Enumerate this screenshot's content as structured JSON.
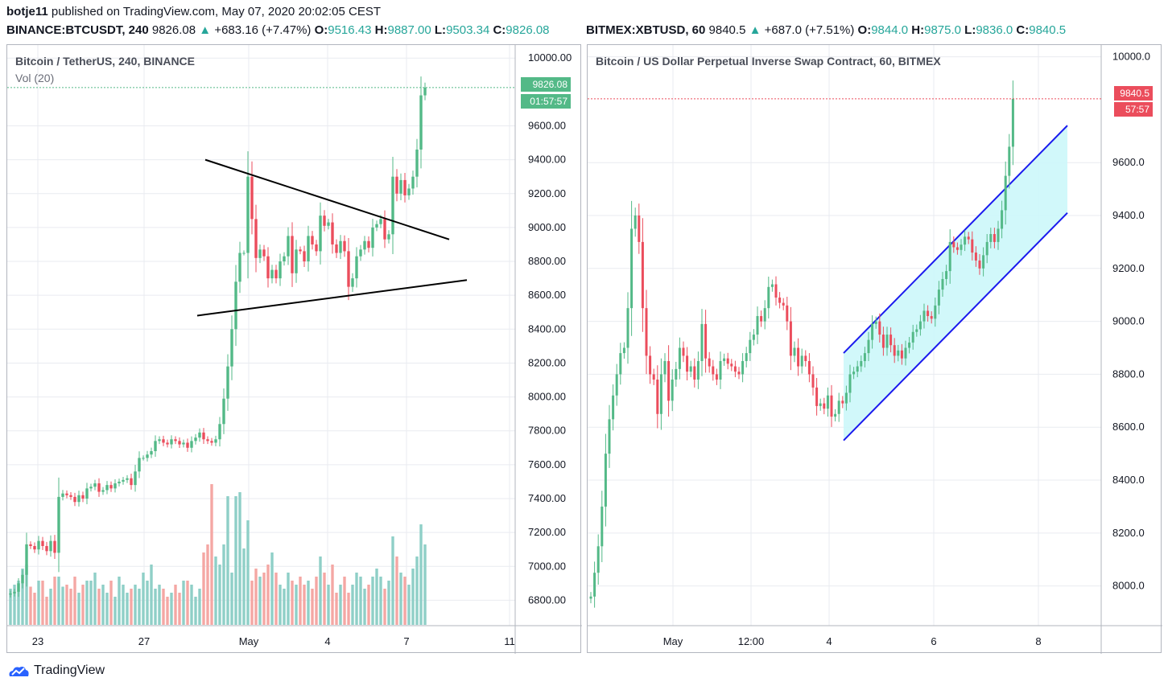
{
  "header": {
    "author": "botje11",
    "published_text": "published on TradingView.com, May 07, 2020 20:02:05 CEST"
  },
  "colors": {
    "up": "#53b987",
    "down": "#eb4d5c",
    "vol_up": "#8fcfc7",
    "vol_down": "#f4a7a4",
    "grid": "#e9ebf0",
    "channel_line": "#1a1aee",
    "channel_fill": "#ccf7f9",
    "triangle_line": "#000000"
  },
  "left": {
    "symbol": "BINANCE:BTCUSDT, 240",
    "last": "9826.08",
    "change": "+683.16 (+7.47%)",
    "o_label": "O:",
    "o": "9516.43",
    "h_label": "H:",
    "h": "9887.00",
    "l_label": "L:",
    "l": "9503.34",
    "c_label": "C:",
    "c": "9826.08",
    "title": "Bitcoin / TetherUS, 240, BINANCE",
    "vol_label": "Vol (20)",
    "price_tag": "9826.08",
    "countdown": "01:57:57",
    "x_labels": [
      "23",
      "27",
      "May",
      "4",
      "7",
      "11"
    ],
    "y_labels": [
      "10000.00",
      "9600.00",
      "9400.00",
      "9200.00",
      "9000.00",
      "8800.00",
      "8600.00",
      "8400.00",
      "8200.00",
      "8000.00",
      "7800.00",
      "7600.00",
      "7400.00",
      "7200.00",
      "7000.00",
      "6800.00"
    ]
  },
  "right": {
    "symbol": "BITMEX:XBTUSD, 60",
    "last": "9840.5",
    "change": "+687.0 (+7.51%)",
    "o_label": "O:",
    "o": "9844.0",
    "h_label": "H:",
    "h": "9875.0",
    "l_label": "L:",
    "l": "9836.0",
    "c_label": "C:",
    "c": "9840.5",
    "title": "Bitcoin / US Dollar Perpetual Inverse Swap Contract, 60, BITMEX",
    "price_tag": "9840.5",
    "countdown": "57:57",
    "x_labels": [
      "May",
      "12:00",
      "4",
      "6",
      "8"
    ],
    "y_labels": [
      "10000.0",
      "9600.0",
      "9400.0",
      "9200.0",
      "9000.0",
      "8800.0",
      "8600.0",
      "8400.0",
      "8200.0",
      "8000.0"
    ]
  },
  "footer": {
    "brand": "TradingView"
  },
  "chart_data": [
    {
      "type": "candlestick",
      "title": "Bitcoin / TetherUS, 240, BINANCE",
      "y_range": [
        6650,
        10020
      ],
      "annotations": "symmetrical triangle (two converging trendlines)",
      "series": [
        {
          "name": "price",
          "close": [
            6840,
            6850,
            6900,
            6950,
            7130,
            7120,
            7100,
            7150,
            7120,
            7090,
            7150,
            7080,
            7410,
            7430,
            7420,
            7410,
            7380,
            7420,
            7400,
            7460,
            7470,
            7490,
            7440,
            7450,
            7480,
            7460,
            7490,
            7500,
            7510,
            7520,
            7480,
            7560,
            7640,
            7640,
            7660,
            7680,
            7740,
            7750,
            7730,
            7720,
            7750,
            7740,
            7720,
            7730,
            7700,
            7740,
            7760,
            7790,
            7750,
            7740,
            7730,
            7750,
            7840,
            7990,
            8180,
            8400,
            8680,
            8850,
            8850,
            9300,
            9050,
            8820,
            8870,
            8830,
            8700,
            8750,
            8700,
            8800,
            8830,
            8950,
            8730,
            8870,
            8860,
            8800,
            8950,
            8900,
            8860,
            9070,
            9010,
            9030,
            8900,
            8850,
            8920,
            8860,
            8650,
            8700,
            8830,
            8870,
            8920,
            8880,
            9000,
            9020,
            9050,
            8930,
            8960,
            9300,
            9200,
            9280,
            9190,
            9230,
            9300,
            9460,
            9780,
            9826
          ]
        },
        {
          "name": "Vol",
          "values": [
            90,
            100,
            110,
            140,
            150,
            95,
            80,
            110,
            110,
            70,
            90,
            120,
            120,
            95,
            100,
            90,
            120,
            80,
            100,
            110,
            110,
            130,
            90,
            100,
            80,
            110,
            70,
            120,
            100,
            80,
            90,
            100,
            90,
            130,
            110,
            150,
            90,
            100,
            90,
            70,
            80,
            100,
            80,
            110,
            110,
            100,
            70,
            90,
            180,
            200,
            350,
            170,
            150,
            200,
            320,
            130,
            320,
            330,
            190,
            260,
            110,
            140,
            120,
            130,
            150,
            180,
            130,
            100,
            90,
            130,
            110,
            100,
            120,
            100,
            110,
            90,
            120,
            170,
            130,
            100,
            150,
            80,
            100,
            120,
            80,
            100,
            130,
            120,
            90,
            100,
            120,
            140,
            120,
            90,
            110,
            220,
            170,
            130,
            120,
            100,
            140,
            170,
            250,
            200
          ]
        }
      ]
    },
    {
      "type": "candlestick",
      "title": "Bitcoin / US Dollar Perpetual Inverse Swap Contract, 60, BITMEX",
      "y_range": [
        7850,
        10020
      ],
      "annotations": "ascending channel (two parallel trendlines with shaded band)",
      "series": [
        {
          "name": "price",
          "close": [
            7960,
            8050,
            8150,
            8300,
            8500,
            8630,
            8720,
            8800,
            8880,
            8900,
            9050,
            9350,
            9400,
            9300,
            9050,
            8870,
            8800,
            8780,
            8650,
            8800,
            8850,
            8700,
            8780,
            8820,
            8900,
            8870,
            8810,
            8830,
            8780,
            8850,
            8990,
            8860,
            8830,
            8800,
            8780,
            8850,
            8860,
            8840,
            8830,
            8810,
            8800,
            8850,
            8880,
            8930,
            8950,
            9020,
            9000,
            9050,
            9130,
            9140,
            9090,
            9070,
            9060,
            9000,
            8870,
            8900,
            8830,
            8870,
            8850,
            8800,
            8750,
            8680,
            8690,
            8670,
            8720,
            8640,
            8650,
            8700,
            8690,
            8730,
            8800,
            8810,
            8830,
            8850,
            8880,
            8930,
            8990,
            9000,
            8950,
            8900,
            8950,
            8910,
            8870,
            8890,
            8860,
            8900,
            8920,
            8960,
            8970,
            9000,
            9040,
            9020,
            9010,
            9060,
            9120,
            9160,
            9190,
            9300,
            9280,
            9270,
            9290,
            9320,
            9310,
            9260,
            9230,
            9200,
            9250,
            9300,
            9330,
            9300,
            9350,
            9420,
            9550,
            9660,
            9841
          ]
        }
      ]
    }
  ]
}
